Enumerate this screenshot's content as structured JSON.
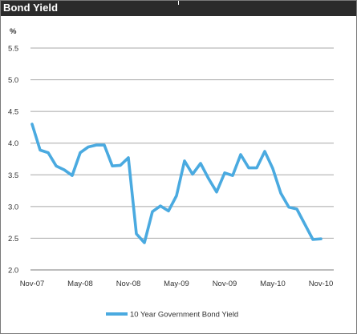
{
  "header": {
    "title": "Bond Yield"
  },
  "chart_data": {
    "type": "line",
    "ylabel": "%",
    "ylim": [
      2.0,
      5.5
    ],
    "yticks": [
      "5.5",
      "5.0",
      "4.5",
      "4.0",
      "3.5",
      "3.0",
      "2.5",
      "2.0"
    ],
    "xticks": [
      "Nov-07",
      "May-08",
      "Nov-08",
      "May-09",
      "Nov-09",
      "May-10",
      "Nov-10"
    ],
    "grid": true,
    "legend": "bottom",
    "series": [
      {
        "name": "10 Year Government Bond Yield",
        "color": "#4aaae0",
        "x": [
          "Nov-07",
          "Dec-07",
          "Jan-08",
          "Feb-08",
          "Mar-08",
          "Apr-08",
          "May-08",
          "Jun-08",
          "Jul-08",
          "Aug-08",
          "Sep-08",
          "Oct-08",
          "Nov-08",
          "Dec-08",
          "Jan-09",
          "Feb-09",
          "Mar-09",
          "Apr-09",
          "May-09",
          "Jun-09",
          "Jul-09",
          "Aug-09",
          "Sep-09",
          "Oct-09",
          "Nov-09",
          "Dec-09",
          "Jan-10",
          "Feb-10",
          "Mar-10",
          "Apr-10",
          "May-10",
          "Jun-10",
          "Jul-10",
          "Aug-10",
          "Sep-10",
          "Oct-10",
          "Nov-10"
        ],
        "values": [
          4.3,
          3.89,
          3.85,
          3.64,
          3.58,
          3.49,
          3.85,
          3.94,
          3.97,
          3.97,
          3.64,
          3.65,
          3.77,
          2.57,
          2.43,
          2.92,
          3.01,
          2.93,
          3.17,
          3.72,
          3.51,
          3.68,
          3.44,
          3.23,
          3.53,
          3.49,
          3.82,
          3.61,
          3.61,
          3.87,
          3.6,
          3.21,
          2.99,
          2.96,
          2.72,
          2.48,
          2.49
        ]
      }
    ]
  }
}
